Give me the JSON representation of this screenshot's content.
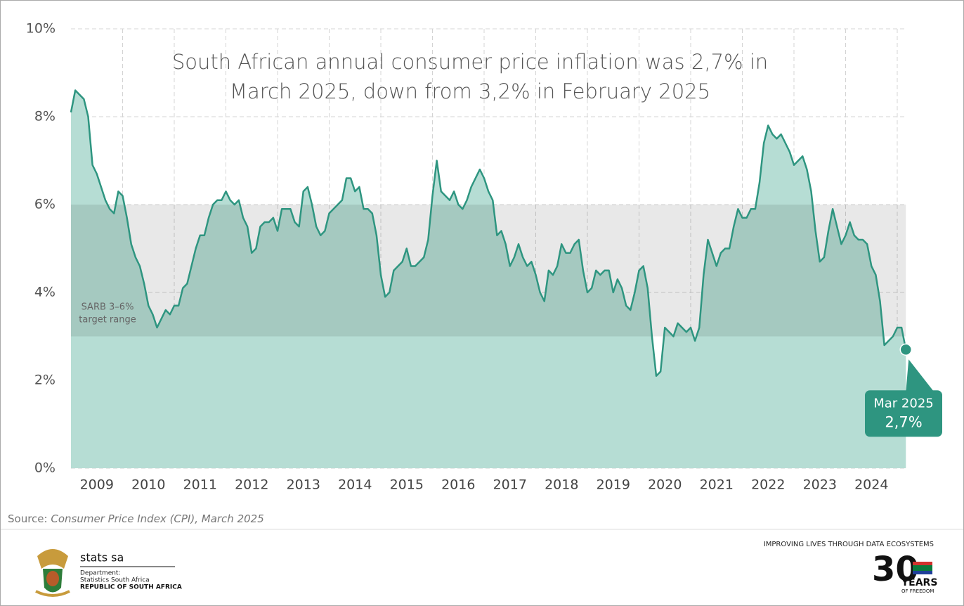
{
  "chart_data": {
    "type": "area",
    "title": "South African annual consumer price inflation was 2,7% in March 2025, down from 3,2% in February 2025",
    "categories": [
      null,
      null,
      null,
      null,
      null,
      null,
      "2009",
      null,
      null,
      null,
      null,
      null,
      null,
      null,
      null,
      null,
      null,
      null,
      "2010",
      null,
      null,
      null,
      null,
      null,
      null,
      null,
      null,
      null,
      null,
      null,
      "2011",
      null,
      null,
      null,
      null,
      null,
      null,
      null,
      null,
      null,
      null,
      null,
      "2012",
      null,
      null,
      null,
      null,
      null,
      null,
      null,
      null,
      null,
      null,
      null,
      "2013",
      null,
      null,
      null,
      null,
      null,
      null,
      null,
      null,
      null,
      null,
      null,
      "2014",
      null,
      null,
      null,
      null,
      null,
      null,
      null,
      null,
      null,
      null,
      null,
      "2015",
      null,
      null,
      null,
      null,
      null,
      null,
      null,
      null,
      null,
      null,
      null,
      "2016",
      null,
      null,
      null,
      null,
      null,
      null,
      null,
      null,
      null,
      null,
      null,
      "2017",
      null,
      null,
      null,
      null,
      null,
      null,
      null,
      null,
      null,
      null,
      null,
      "2018",
      null,
      null,
      null,
      null,
      null,
      null,
      null,
      null,
      null,
      null,
      null,
      "2019",
      null,
      null,
      null,
      null,
      null,
      null,
      null,
      null,
      null,
      null,
      null,
      "2020",
      null,
      null,
      null,
      null,
      null,
      null,
      null,
      null,
      null,
      null,
      null,
      "2021",
      null,
      null,
      null,
      null,
      null,
      null,
      null,
      null,
      null,
      null,
      null,
      "2022",
      null,
      null,
      null,
      null,
      null,
      null,
      null,
      null,
      null,
      null,
      null,
      "2023",
      null,
      null,
      null,
      null,
      null,
      null,
      null,
      null,
      null,
      null,
      null,
      "2024",
      null,
      null,
      null,
      null,
      null,
      null,
      null,
      null
    ],
    "values": [
      8.1,
      8.6,
      8.5,
      8.4,
      8.0,
      6.9,
      6.7,
      6.4,
      6.1,
      5.9,
      5.8,
      6.3,
      6.2,
      5.7,
      5.1,
      4.8,
      4.6,
      4.2,
      3.7,
      3.5,
      3.2,
      3.4,
      3.6,
      3.5,
      3.7,
      3.7,
      4.1,
      4.2,
      4.6,
      5.0,
      5.3,
      5.3,
      5.7,
      6.0,
      6.1,
      6.1,
      6.3,
      6.1,
      6.0,
      6.1,
      5.7,
      5.5,
      4.9,
      5.0,
      5.5,
      5.6,
      5.6,
      5.7,
      5.4,
      5.9,
      5.9,
      5.9,
      5.6,
      5.5,
      6.3,
      6.4,
      6.0,
      5.5,
      5.3,
      5.4,
      5.8,
      5.9,
      6.0,
      6.1,
      6.6,
      6.6,
      6.3,
      6.4,
      5.9,
      5.9,
      5.8,
      5.3,
      4.4,
      3.9,
      4.0,
      4.5,
      4.6,
      4.7,
      5.0,
      4.6,
      4.6,
      4.7,
      4.8,
      5.2,
      6.2,
      7.0,
      6.3,
      6.2,
      6.1,
      6.3,
      6.0,
      5.9,
      6.1,
      6.4,
      6.6,
      6.8,
      6.6,
      6.3,
      6.1,
      5.3,
      5.4,
      5.1,
      4.6,
      4.8,
      5.1,
      4.8,
      4.6,
      4.7,
      4.4,
      4.0,
      3.8,
      4.5,
      4.4,
      4.6,
      5.1,
      4.9,
      4.9,
      5.1,
      5.2,
      4.5,
      4.0,
      4.1,
      4.5,
      4.4,
      4.5,
      4.5,
      4.0,
      4.3,
      4.1,
      3.7,
      3.6,
      4.0,
      4.5,
      4.6,
      4.1,
      3.0,
      2.1,
      2.2,
      3.2,
      3.1,
      3.0,
      3.3,
      3.2,
      3.1,
      3.2,
      2.9,
      3.2,
      4.4,
      5.2,
      4.9,
      4.6,
      4.9,
      5.0,
      5.0,
      5.5,
      5.9,
      5.7,
      5.7,
      5.9,
      5.9,
      6.5,
      7.4,
      7.8,
      7.6,
      7.5,
      7.6,
      7.4,
      7.2,
      6.9,
      7.0,
      7.1,
      6.8,
      6.3,
      5.4,
      4.7,
      4.8,
      5.4,
      5.9,
      5.5,
      5.1,
      5.3,
      5.6,
      5.3,
      5.2,
      5.2,
      5.1,
      4.6,
      4.4,
      3.8,
      2.8,
      2.9,
      3.0,
      3.2,
      3.2,
      2.7
    ],
    "color": "#2e9580",
    "fill_color": "#b6ddd4",
    "ylim": [
      0,
      10
    ],
    "yticks": [
      {
        "value": 0,
        "label": "0%"
      },
      {
        "value": 2,
        "label": "2%"
      },
      {
        "value": 4,
        "label": "4%"
      },
      {
        "value": 6,
        "label": "6%"
      },
      {
        "value": 8,
        "label": "8%"
      },
      {
        "value": 10,
        "label": "10%"
      }
    ],
    "grid": true,
    "target_range": [
      3,
      6
    ],
    "target_range_label": [
      "SARB 3–6%",
      "target range"
    ],
    "callout": {
      "label": "Mar 2025",
      "value_label": "2,7%"
    },
    "source_prefix": "Source:",
    "source": "Consumer Price Index (CPI), March 2025"
  },
  "footer": {
    "org_name": "stats sa",
    "department": "Department:",
    "department_name": "Statistics South Africa",
    "country": "REPUBLIC OF SOUTH AFRICA",
    "slogan": "IMPROVING LIVES THROUGH DATA ECOSYSTEMS",
    "anniversary_number": "30",
    "anniversary_word": "YEARS",
    "anniversary_sub": "OF FREEDOM"
  }
}
